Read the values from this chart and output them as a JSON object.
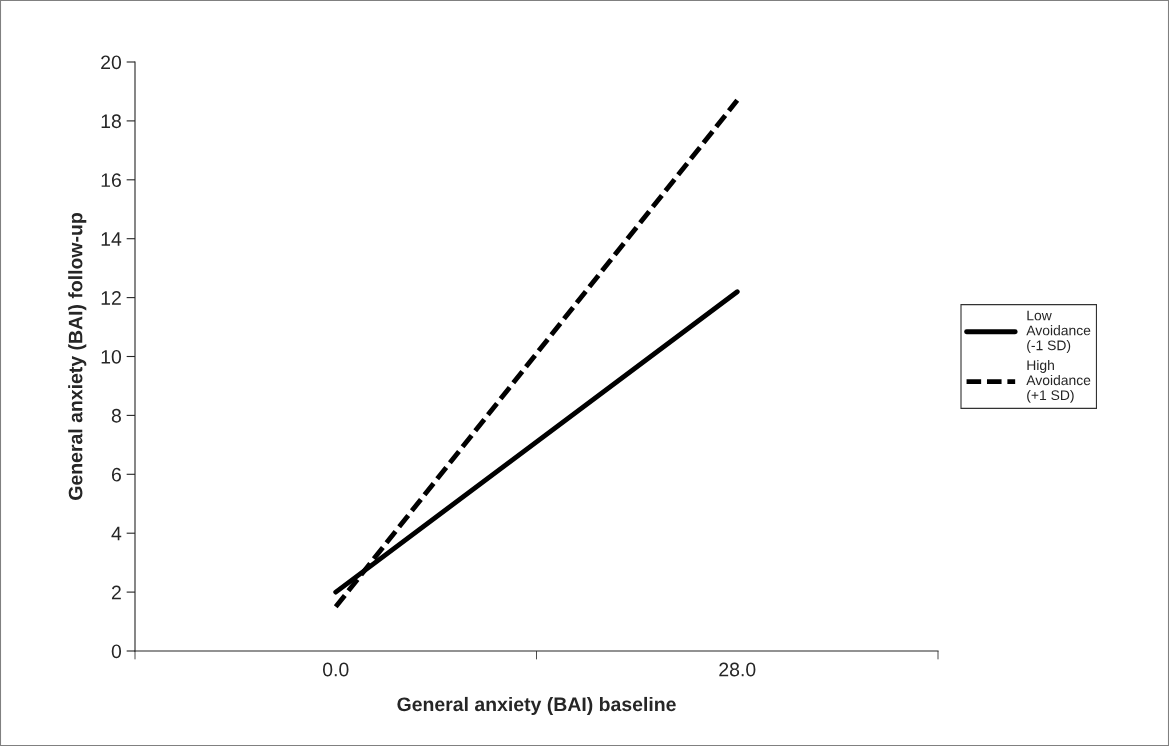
{
  "chart_data": {
    "type": "line",
    "xlabel": "General anxiety (BAI) baseline",
    "ylabel": "General anxiety (BAI) follow-up",
    "categories": [
      "0.0",
      "28.0"
    ],
    "series": [
      {
        "name": "Low\nAvoidance\n(-1 SD)",
        "color": "#000000",
        "line_style": "solid",
        "values": [
          2.0,
          12.2
        ]
      },
      {
        "name": "High\nAvoidance\n(+1 SD)",
        "color": "#000000",
        "line_style": "dashed",
        "values": [
          1.5,
          18.7
        ]
      }
    ],
    "ylim": [
      0,
      20
    ],
    "yticks": [
      0,
      2,
      4,
      6,
      8,
      10,
      12,
      14,
      16,
      18,
      20
    ],
    "grid": false,
    "legend": "right",
    "marker": "none"
  }
}
